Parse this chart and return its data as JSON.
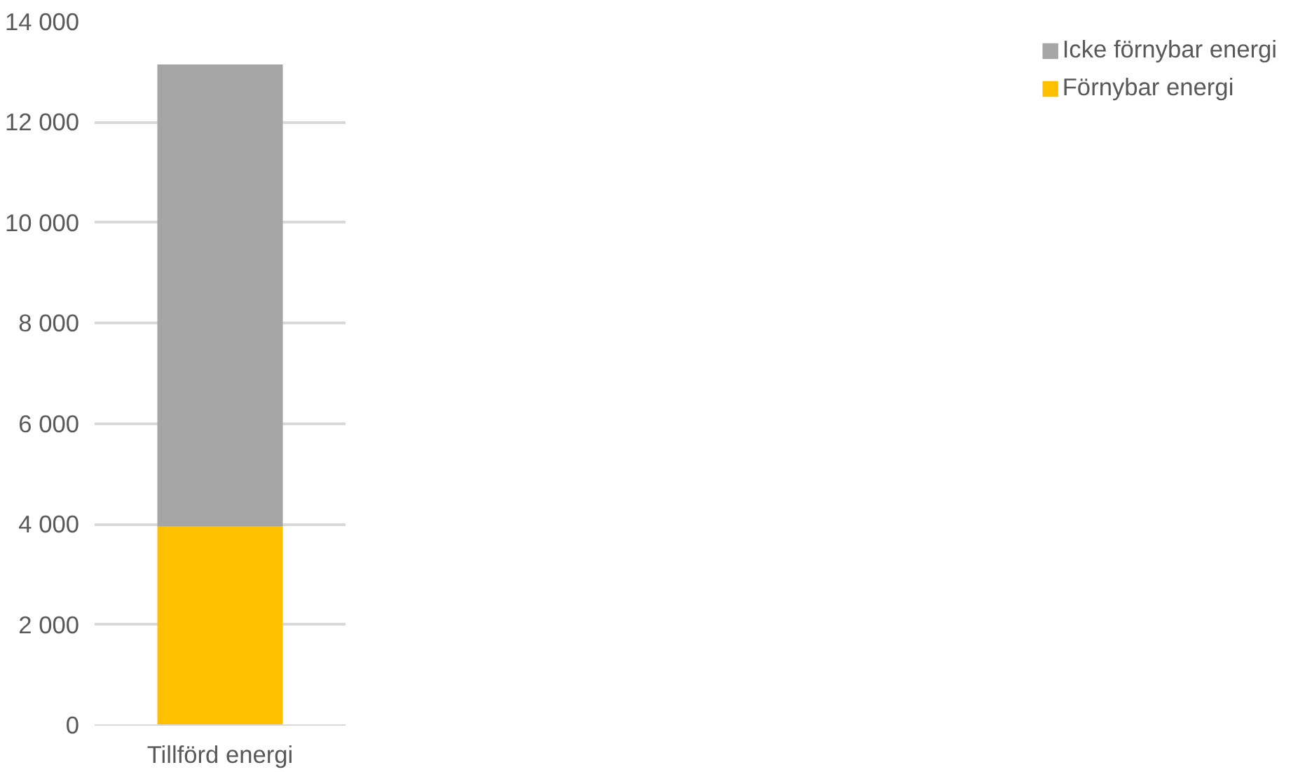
{
  "chart_data": {
    "type": "bar",
    "stacked": true,
    "categories": [
      "Tillförd energi"
    ],
    "series": [
      {
        "name": "Förnybar energi",
        "color": "#ffc000",
        "values": [
          3950
        ]
      },
      {
        "name": "Icke förnybar energi",
        "color": "#a5a5a5",
        "values": [
          9200
        ]
      }
    ],
    "ylim": [
      0,
      14000
    ],
    "yticks": [
      {
        "value": 0,
        "label": "0"
      },
      {
        "value": 2000,
        "label": "2 000"
      },
      {
        "value": 4000,
        "label": "4 000"
      },
      {
        "value": 6000,
        "label": "6 000"
      },
      {
        "value": 8000,
        "label": "8 000"
      },
      {
        "value": 10000,
        "label": "10 000"
      },
      {
        "value": 12000,
        "label": "12 000"
      },
      {
        "value": 14000,
        "label": "14 000"
      }
    ],
    "grid": "y",
    "legend": "right"
  }
}
